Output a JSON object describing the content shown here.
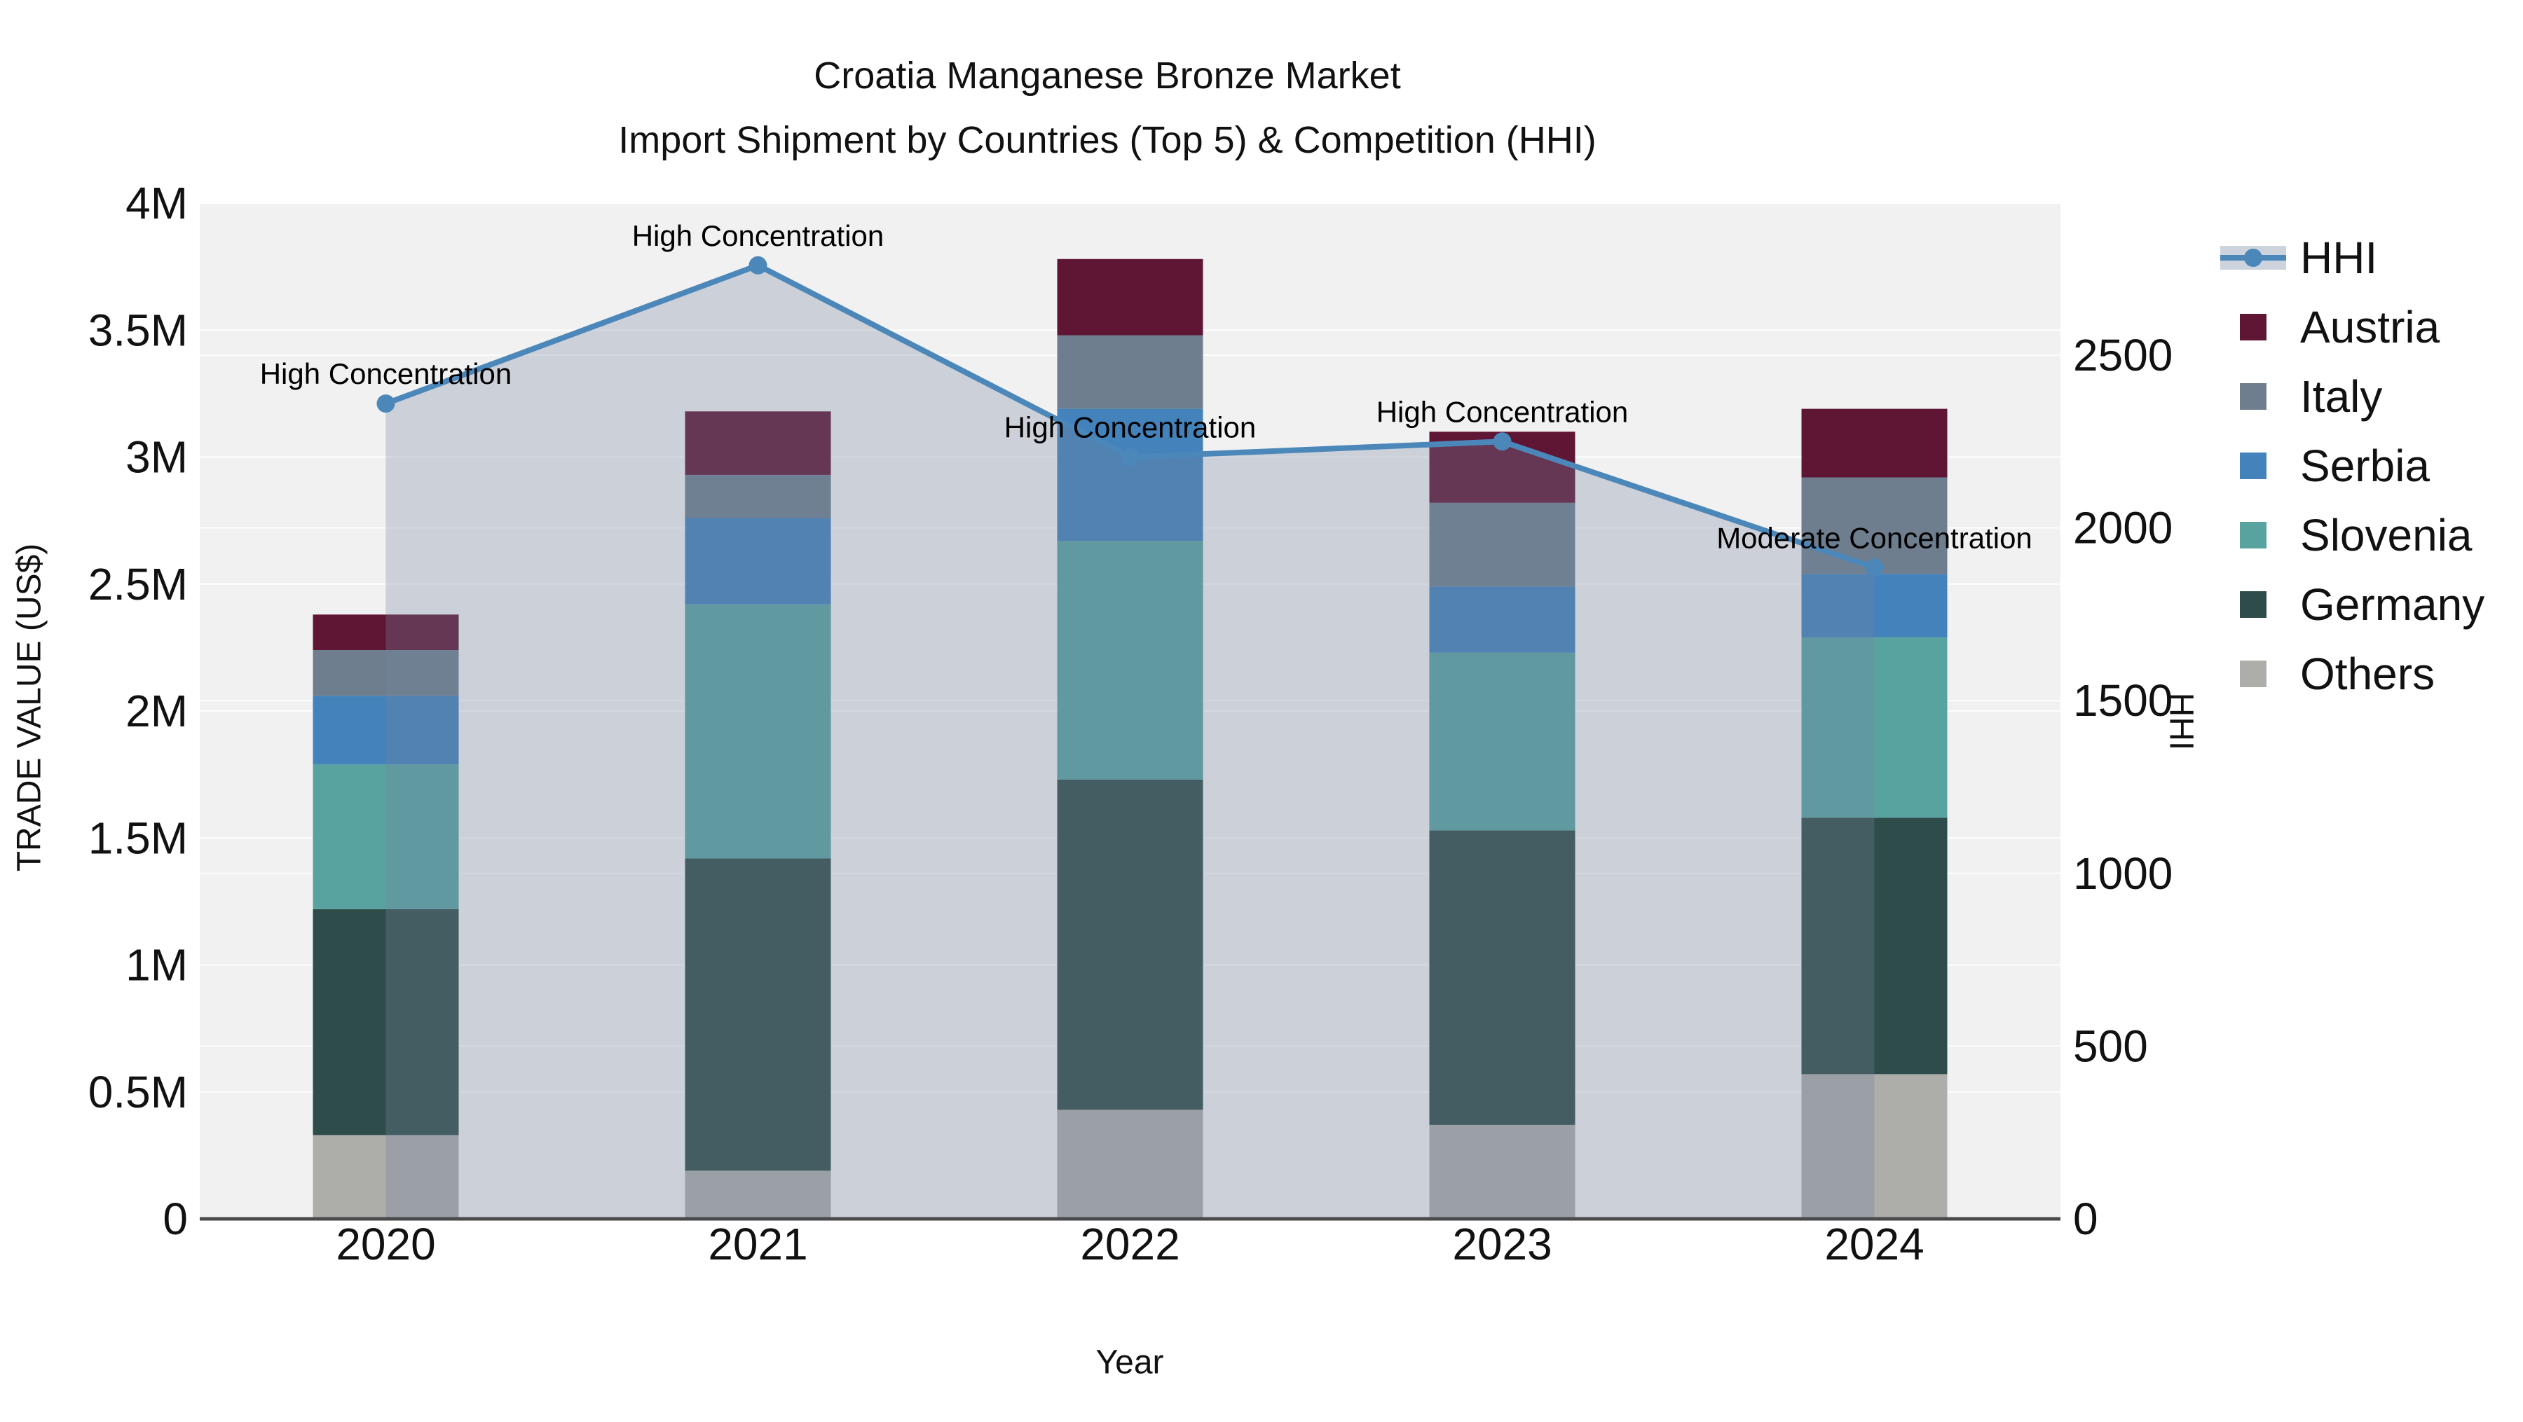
{
  "title": {
    "line1": "Croatia Manganese Bronze Market",
    "line2": "Import Shipment by Countries (Top 5) & Competition (HHI)"
  },
  "axes": {
    "x_title": "Year",
    "y_left_title": "TRADE VALUE (US$)",
    "y_right_title": "HHI"
  },
  "legend": {
    "items": [
      {
        "label": "HHI",
        "type": "line",
        "color": "#4c87ba"
      },
      {
        "label": "Austria",
        "type": "swatch",
        "color": "#5f1635"
      },
      {
        "label": "Italy",
        "type": "swatch",
        "color": "#6e7e8e"
      },
      {
        "label": "Serbia",
        "type": "swatch",
        "color": "#4382ba"
      },
      {
        "label": "Slovenia",
        "type": "swatch",
        "color": "#58a3a0"
      },
      {
        "label": "Germany",
        "type": "swatch",
        "color": "#2e4d4a"
      },
      {
        "label": "Others",
        "type": "swatch",
        "color": "#adadaa"
      }
    ]
  },
  "colors": {
    "plot_background": "#f1f1f2",
    "gridline": "#ffffff",
    "axis_line": "#4a4a4a",
    "hhi_line": "#4c87ba",
    "hhi_fill": "#73849f",
    "text": "#111111"
  },
  "chart_data": {
    "type": "stacked-bar+line",
    "title": "Croatia Manganese Bronze Market — Import Shipment by Countries (Top 5) & Competition (HHI)",
    "x": [
      "2020",
      "2021",
      "2022",
      "2023",
      "2024"
    ],
    "xlabel": "Year",
    "bar_value_unit": "US$",
    "stack_bottom_to_top": [
      "Others",
      "Germany",
      "Slovenia",
      "Serbia",
      "Italy",
      "Austria"
    ],
    "series": [
      {
        "name": "Austria",
        "color": "#5f1635",
        "values": [
          140000,
          250000,
          300000,
          280000,
          270000
        ]
      },
      {
        "name": "Italy",
        "color": "#6e7e8e",
        "values": [
          180000,
          170000,
          290000,
          330000,
          380000
        ]
      },
      {
        "name": "Serbia",
        "color": "#4382ba",
        "values": [
          270000,
          340000,
          520000,
          260000,
          250000
        ]
      },
      {
        "name": "Slovenia",
        "color": "#58a3a0",
        "values": [
          570000,
          1000000,
          940000,
          700000,
          710000
        ]
      },
      {
        "name": "Germany",
        "color": "#2e4d4a",
        "values": [
          890000,
          1230000,
          1300000,
          1160000,
          1010000
        ]
      },
      {
        "name": "Others",
        "color": "#adadaa",
        "values": [
          330000,
          190000,
          430000,
          370000,
          570000
        ]
      }
    ],
    "bar_totals": [
      2380000,
      3180000,
      3780000,
      3100000,
      3190000
    ],
    "line": {
      "name": "HHI",
      "axis": "right",
      "color": "#4c87ba",
      "fill_color": "#73849f",
      "fill_opacity": 0.3,
      "values": [
        2360,
        2760,
        2205,
        2250,
        1885
      ]
    },
    "annotations": [
      {
        "x": "2020",
        "text": "High Concentration"
      },
      {
        "x": "2021",
        "text": "High Concentration"
      },
      {
        "x": "2022",
        "text": "High Concentration"
      },
      {
        "x": "2023",
        "text": "High Concentration"
      },
      {
        "x": "2024",
        "text": "Moderate Concentration"
      }
    ],
    "y_left": {
      "label": "TRADE VALUE (US$)",
      "range": [
        0,
        4000000
      ],
      "ticks": [
        "0",
        "0.5M",
        "1M",
        "1.5M",
        "2M",
        "2.5M",
        "3M",
        "3.5M",
        "4M"
      ],
      "tick_values": [
        0,
        500000,
        1000000,
        1500000,
        2000000,
        2500000,
        3000000,
        3500000,
        4000000
      ]
    },
    "y_right": {
      "label": "HHI",
      "range": [
        0,
        2940
      ],
      "ticks": [
        "0",
        "500",
        "1000",
        "1500",
        "2000",
        "2500"
      ],
      "tick_values": [
        0,
        500,
        1000,
        1500,
        2000,
        2500
      ]
    },
    "grid": true,
    "legend_position": "right"
  }
}
